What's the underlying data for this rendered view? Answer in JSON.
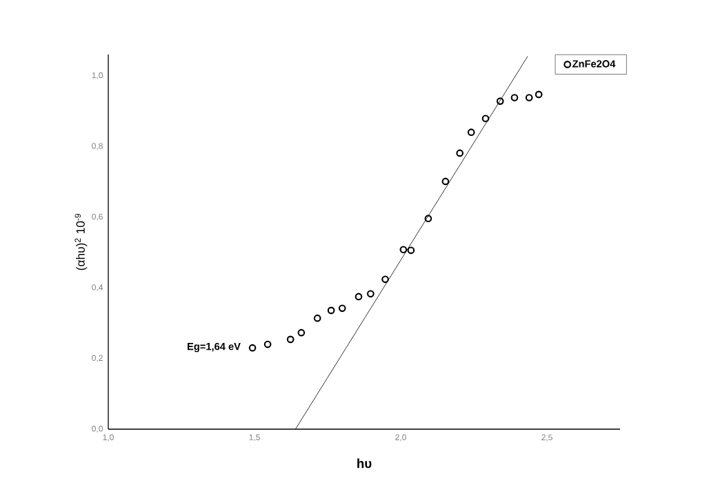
{
  "chart_data": {
    "type": "scatter",
    "xlabel": "hυ",
    "ylabel": "(αhυ)$^{2}$ 10$^{-9}$",
    "annotations": [
      "Eg=1,64 eV"
    ],
    "xlim": [
      1.0,
      2.75
    ],
    "ylim": [
      0,
      1.06
    ],
    "xticks": [
      {
        "value": 1.0,
        "label": "1,0"
      },
      {
        "value": 1.5,
        "label": "1,5"
      },
      {
        "value": 2.0,
        "label": "2,0"
      },
      {
        "value": 2.5,
        "label": "2,5"
      }
    ],
    "yticks": [
      {
        "value": 0,
        "label": "0,0"
      },
      {
        "value": 0.2,
        "label": "0,2"
      },
      {
        "value": 0.4,
        "label": "0,4"
      },
      {
        "value": 0.6,
        "label": "0,6"
      },
      {
        "value": 0.8,
        "label": "0,8"
      },
      {
        "value": 1.0,
        "label": "1,0"
      }
    ],
    "grid": false,
    "legend": "top right",
    "marker": "circle",
    "series": [
      {
        "name": "ZnFe2O4",
        "color": "#000000",
        "x": [
          1.493,
          1.545,
          1.623,
          1.66,
          1.715,
          1.762,
          1.8,
          1.856,
          1.897,
          1.947,
          2.009,
          2.035,
          2.094,
          2.153,
          2.202,
          2.241,
          2.29,
          2.34,
          2.389,
          2.439,
          2.472
        ],
        "values": [
          0.23,
          0.24,
          0.254,
          0.273,
          0.314,
          0.336,
          0.342,
          0.375,
          0.383,
          0.424,
          0.508,
          0.506,
          0.596,
          0.701,
          0.781,
          0.84,
          0.879,
          0.928,
          0.938,
          0.938,
          0.947
        ]
      },
      {
        "type": "line",
        "color": "#000000",
        "marker": "none",
        "line_style": "solid",
        "x": [
          1.64,
          2.434
        ],
        "values": [
          0,
          1.055
        ]
      }
    ]
  }
}
